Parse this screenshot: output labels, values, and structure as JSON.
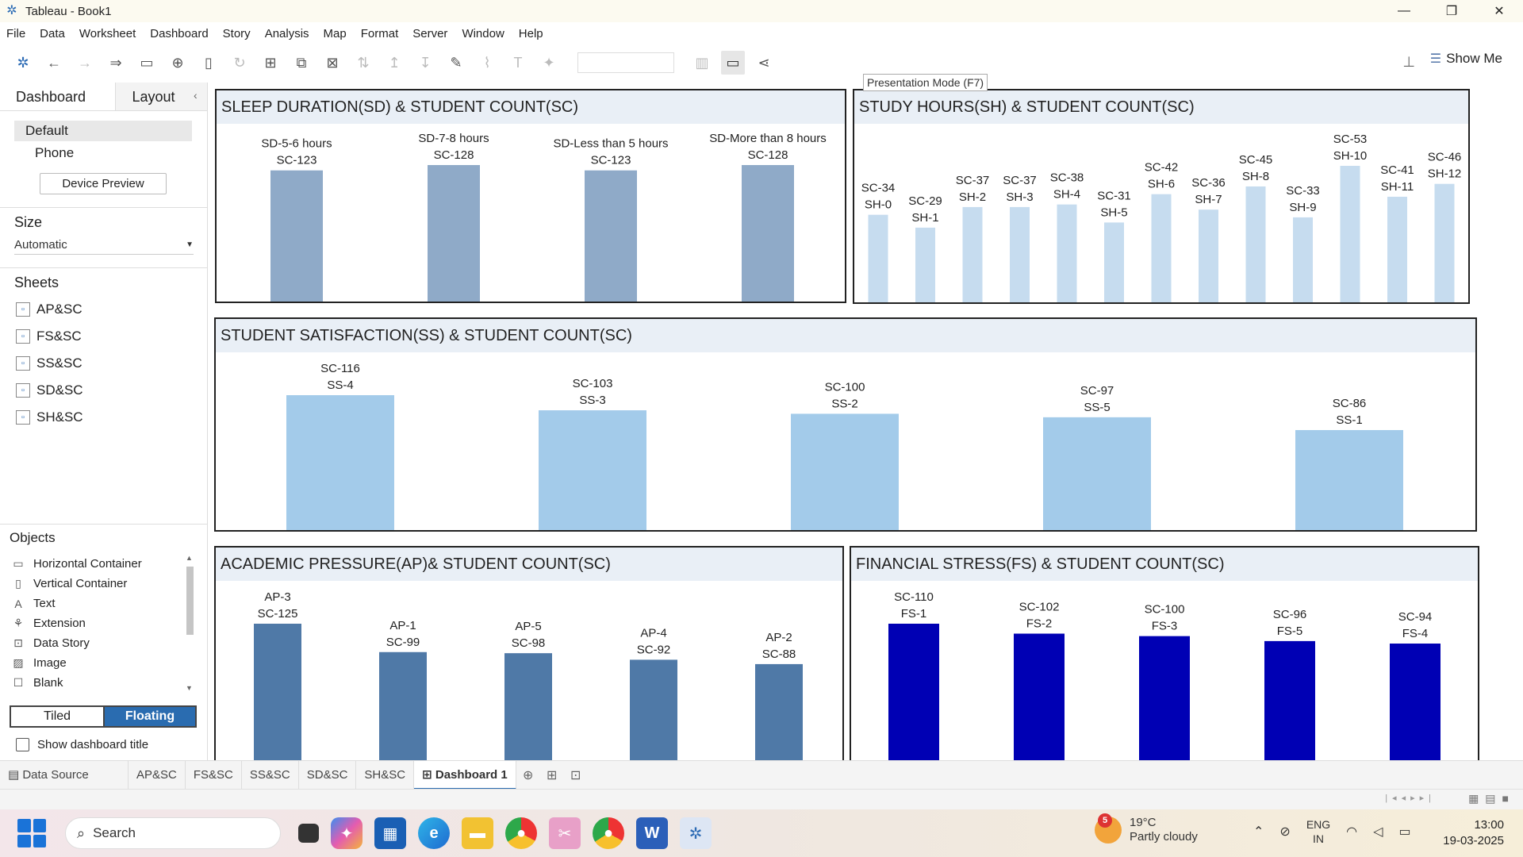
{
  "window": {
    "title": "Tableau - Book1"
  },
  "menu": [
    "File",
    "Data",
    "Worksheet",
    "Dashboard",
    "Story",
    "Analysis",
    "Map",
    "Format",
    "Server",
    "Window",
    "Help"
  ],
  "toolbar": {
    "show_me": "Show Me",
    "tooltip": "Presentation Mode (F7)"
  },
  "left_panel": {
    "tab_dashboard": "Dashboard",
    "tab_layout": "Layout",
    "device_default": "Default",
    "device_phone": "Phone",
    "device_preview": "Device Preview",
    "size_title": "Size",
    "size_value": "Automatic",
    "sheets_title": "Sheets",
    "sheets": [
      "AP&SC",
      "FS&SC",
      "SS&SC",
      "SD&SC",
      "SH&SC"
    ],
    "objects_title": "Objects",
    "objects": [
      "Horizontal Container",
      "Vertical Container",
      "Text",
      "Extension",
      "Data Story",
      "Image",
      "Blank"
    ],
    "tiled": "Tiled",
    "floating": "Floating",
    "show_dashboard_title": "Show dashboard title"
  },
  "dashboard": {
    "sd_title": "SLEEP DURATION(SD) & STUDENT COUNT(SC)",
    "sh_title": "STUDY HOURS(SH)  & STUDENT COUNT(SC)",
    "ss_title": "STUDENT SATISFACTION(SS) & STUDENT COUNT(SC)",
    "ap_title": "ACADEMIC PRESSURE(AP)& STUDENT COUNT(SC)",
    "fs_title": "FINANCIAL STRESS(FS) & STUDENT COUNT(SC)"
  },
  "chart_data": [
    {
      "id": "sd",
      "type": "bar",
      "color": "#8faac8",
      "categories": [
        "SD-5-6 hours",
        "SD-7-8 hours",
        "SD-Less than 5 hours",
        "SD-More than 8 hours"
      ],
      "values": [
        123,
        128,
        123,
        128
      ],
      "labels": [
        [
          "SD-5-6 hours",
          "SC-123"
        ],
        [
          "SD-7-8 hours",
          "SC-128"
        ],
        [
          "SD-Less than 5 hours",
          "SC-123"
        ],
        [
          "SD-More than 8 hours",
          "SC-128"
        ]
      ]
    },
    {
      "id": "sh",
      "type": "bar",
      "color": "#c6dcef",
      "categories": [
        "SH-0",
        "SH-1",
        "SH-2",
        "SH-3",
        "SH-4",
        "SH-5",
        "SH-6",
        "SH-7",
        "SH-8",
        "SH-9",
        "SH-10",
        "SH-11",
        "SH-12"
      ],
      "values": [
        34,
        29,
        37,
        37,
        38,
        31,
        42,
        36,
        45,
        33,
        53,
        41,
        46
      ],
      "labels": [
        [
          "SC-34",
          "SH-0"
        ],
        [
          "SC-29",
          "SH-1"
        ],
        [
          "SC-37",
          "SH-2"
        ],
        [
          "SC-37",
          "SH-3"
        ],
        [
          "SC-38",
          "SH-4"
        ],
        [
          "SC-31",
          "SH-5"
        ],
        [
          "SC-42",
          "SH-6"
        ],
        [
          "SC-36",
          "SH-7"
        ],
        [
          "SC-45",
          "SH-8"
        ],
        [
          "SC-33",
          "SH-9"
        ],
        [
          "SC-53",
          "SH-10"
        ],
        [
          "SC-41",
          "SH-11"
        ],
        [
          "SC-46",
          "SH-12"
        ]
      ]
    },
    {
      "id": "ss",
      "type": "bar",
      "color": "#a3cbea",
      "categories": [
        "SS-4",
        "SS-3",
        "SS-2",
        "SS-5",
        "SS-1"
      ],
      "values": [
        116,
        103,
        100,
        97,
        86
      ],
      "labels": [
        [
          "SC-116",
          "SS-4"
        ],
        [
          "SC-103",
          "SS-3"
        ],
        [
          "SC-100",
          "SS-2"
        ],
        [
          "SC-97",
          "SS-5"
        ],
        [
          "SC-86",
          "SS-1"
        ]
      ]
    },
    {
      "id": "ap",
      "type": "bar",
      "color": "#4f79a7",
      "categories": [
        "AP-3",
        "AP-1",
        "AP-5",
        "AP-4",
        "AP-2"
      ],
      "values": [
        125,
        99,
        98,
        92,
        88
      ],
      "labels": [
        [
          "AP-3",
          "SC-125"
        ],
        [
          "AP-1",
          "SC-99"
        ],
        [
          "AP-5",
          "SC-98"
        ],
        [
          "AP-4",
          "SC-92"
        ],
        [
          "AP-2",
          "SC-88"
        ]
      ]
    },
    {
      "id": "fs",
      "type": "bar",
      "color": "#0000b4",
      "categories": [
        "FS-1",
        "FS-2",
        "FS-3",
        "FS-5",
        "FS-4"
      ],
      "values": [
        110,
        102,
        100,
        96,
        94
      ],
      "labels": [
        [
          "SC-110",
          "FS-1"
        ],
        [
          "SC-102",
          "FS-2"
        ],
        [
          "SC-100",
          "FS-3"
        ],
        [
          "SC-96",
          "FS-5"
        ],
        [
          "SC-94",
          "FS-4"
        ]
      ]
    }
  ],
  "sheet_tabs": {
    "data_source": "Data Source",
    "tabs": [
      "AP&SC",
      "FS&SC",
      "SS&SC",
      "SD&SC",
      "SH&SC"
    ],
    "active": "Dashboard 1"
  },
  "taskbar": {
    "search": "Search",
    "weather_badge": "5",
    "temp": "19°C",
    "condition": "Partly cloudy",
    "lang1": "ENG",
    "lang2": "IN",
    "time": "13:00",
    "date": "19-03-2025"
  }
}
